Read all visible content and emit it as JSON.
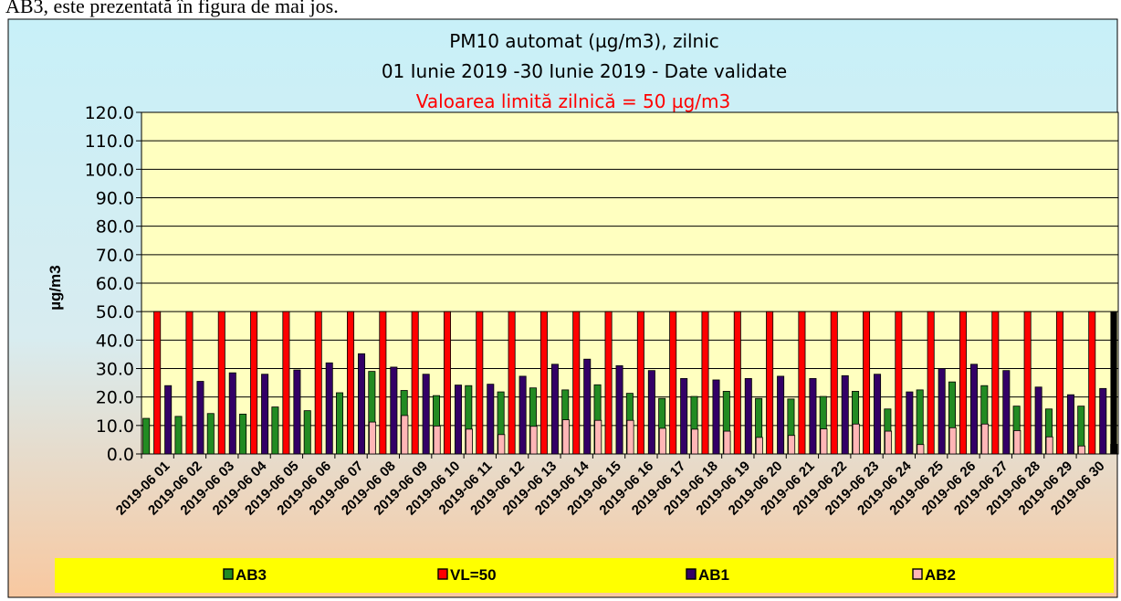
{
  "caption": "AB3, este prezentată în figura de mai jos.",
  "chart_data": {
    "type": "bar",
    "title": "PM10 automat (µg/m3), zilnic",
    "subtitle": "01 Iunie 2019 -30 Iunie 2019 - Date validate",
    "annotation": "Valoarea limită zilnică = 50 µg/m3",
    "ylabel": "µg/m3",
    "xlabel": "",
    "ylim": [
      0,
      120
    ],
    "ytick_step": 10,
    "grid": true,
    "legend_position": "bottom",
    "categories": [
      "2019-06 01",
      "2019-06 02",
      "2019-06 03",
      "2019-06 04",
      "2019-06 05",
      "2019-06 06",
      "2019-06 07",
      "2019-06 08",
      "2019-06 09",
      "2019-06 10",
      "2019-06 11",
      "2019-06 12",
      "2019-06 13",
      "2019-06 14",
      "2019-06 15",
      "2019-06 16",
      "2019-06 17",
      "2019-06 18",
      "2019-06 19",
      "2019-06 20",
      "2019-06 21",
      "2019-06 22",
      "2019-06 23",
      "2019-06 24",
      "2019-06 25",
      "2019-06 26",
      "2019-06 27",
      "2019-06 28",
      "2019-06 29",
      "2019-06 30"
    ],
    "series": [
      {
        "name": "AB3",
        "color": "#228B22",
        "values": [
          12.5,
          13.2,
          14.2,
          14.0,
          16.5,
          15.2,
          21.5,
          29.0,
          22.3,
          20.5,
          24.0,
          21.8,
          23.2,
          22.5,
          24.3,
          21.3,
          19.5,
          20.2,
          22.0,
          19.5,
          19.3,
          20.2,
          22.0,
          15.8,
          22.5,
          25.3,
          24.0,
          16.8,
          15.8,
          16.8
        ]
      },
      {
        "name": "VL=50",
        "color": "#FF0000",
        "values": [
          50,
          50,
          50,
          50,
          50,
          50,
          50,
          50,
          50,
          50,
          50,
          50,
          50,
          50,
          50,
          50,
          50,
          50,
          50,
          50,
          50,
          50,
          50,
          50,
          50,
          50,
          50,
          50,
          50,
          50
        ]
      },
      {
        "name": "AB1",
        "color": "#330066",
        "values": [
          24.0,
          25.5,
          28.5,
          28.0,
          29.5,
          32.0,
          35.2,
          30.5,
          28.0,
          24.2,
          24.5,
          27.3,
          31.5,
          33.3,
          31.0,
          29.3,
          26.5,
          26.0,
          26.5,
          27.3,
          26.5,
          27.5,
          28.0,
          21.8,
          30.0,
          31.5,
          29.3,
          23.5,
          20.8,
          23.0
        ]
      },
      {
        "name": "AB2",
        "color": "#FFB6B6",
        "values": [
          null,
          null,
          null,
          null,
          null,
          null,
          11.2,
          13.5,
          9.8,
          8.7,
          6.8,
          9.7,
          12.0,
          11.8,
          11.8,
          9.0,
          8.7,
          8.0,
          5.8,
          6.5,
          8.8,
          10.5,
          8.0,
          3.3,
          9.2,
          10.5,
          8.2,
          6.0,
          2.8,
          3.4
        ]
      }
    ]
  }
}
